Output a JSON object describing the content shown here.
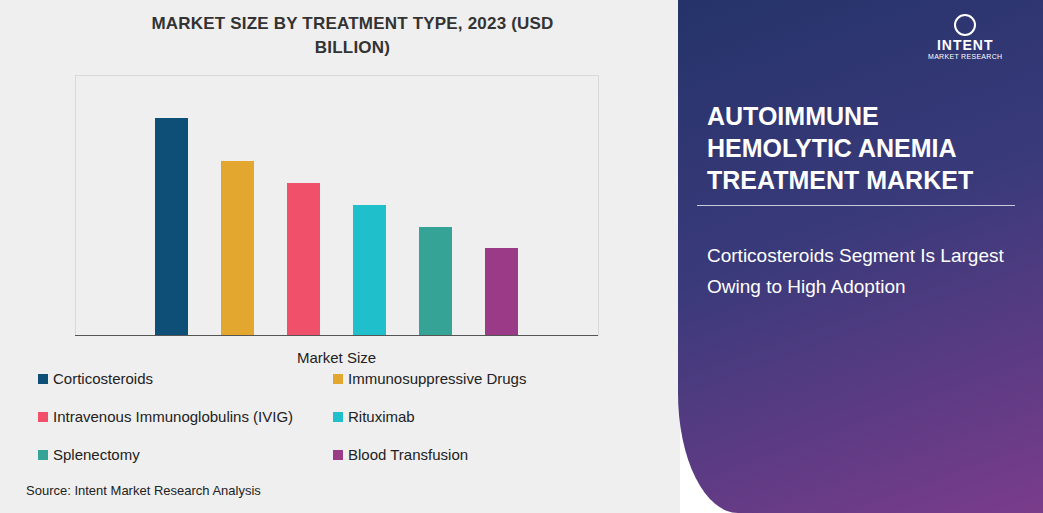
{
  "chart_data": {
    "type": "bar",
    "title": "MARKET SIZE BY TREATMENT TYPE, 2023 (USD BILLION)",
    "xlabel": "Market Size",
    "categories": [
      "Corticosteroids",
      "Immunosuppressive Drugs",
      "Intravenous Immunoglobulins (IVIG)",
      "Rituximab",
      "Splenectomy",
      "Blood Transfusion"
    ],
    "values": [
      2.17,
      1.74,
      1.52,
      1.3,
      1.08,
      0.87
    ],
    "colors": [
      "#0e4f77",
      "#e3a72f",
      "#f0506a",
      "#1fbfcc",
      "#35a396",
      "#9b3a87"
    ],
    "ylim": [
      0,
      2.6
    ],
    "yticks": [],
    "tick_labels": false,
    "legend": "bottom",
    "source": "Source: Intent Market Research Analysis"
  },
  "side_panel": {
    "heading": "AUTOIMMUNE HEMOLYTIC ANEMIA TREATMENT MARKET",
    "subheading": "Corticosteroids Segment Is Largest Owing to High Adoption"
  },
  "logo": {
    "name": "INTENT",
    "tagline": "MARKET RESEARCH"
  }
}
